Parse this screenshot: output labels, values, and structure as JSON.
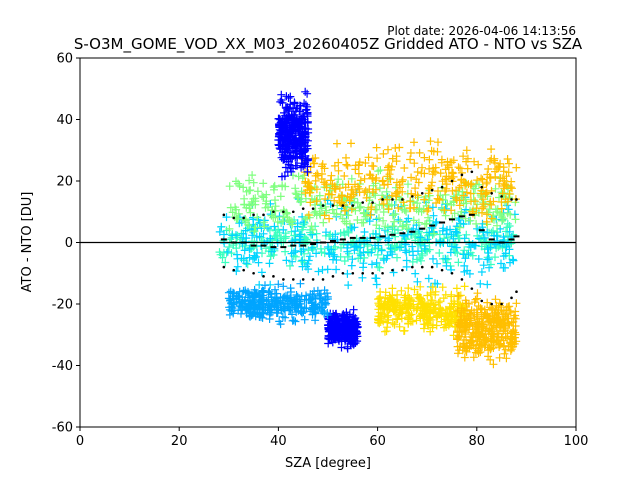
{
  "header": {
    "plot_date": "Plot date: 2026-04-06 14:13:56",
    "title": "S-O3M_GOME_VOD_XX_M03_20260405Z Gridded ATO - NTO vs SZA"
  },
  "chart_data": {
    "type": "scatter",
    "xlabel": "SZA [degree]",
    "ylabel": "ATO - NTO [DU]",
    "xlim": [
      0,
      100
    ],
    "ylim": [
      -60,
      60
    ],
    "xticks": [
      0,
      20,
      40,
      60,
      80,
      100
    ],
    "yticks": [
      -60,
      -40,
      -20,
      0,
      20,
      40,
      60
    ],
    "grid": false,
    "marker": "+",
    "reference_line_y": 0,
    "point_colors": [
      "#0000ff",
      "#00a5ff",
      "#00d5ff",
      "#3affbf",
      "#7fff7f",
      "#bfff3a",
      "#ffe000",
      "#ffbf00"
    ],
    "mean_bins": {
      "x": [
        29,
        31,
        33,
        35,
        37,
        39,
        41,
        43,
        45,
        47,
        49,
        51,
        53,
        55,
        57,
        59,
        61,
        63,
        65,
        67,
        69,
        71,
        73,
        75,
        77,
        79,
        81,
        83,
        85,
        87,
        88
      ],
      "mean": [
        1,
        0,
        0,
        -1,
        -1,
        -1.5,
        -1.5,
        -1,
        -1,
        -0.5,
        0,
        0.5,
        1,
        1.5,
        1.5,
        1.5,
        2,
        2.5,
        3,
        3.5,
        4.5,
        5.5,
        6.5,
        7.5,
        8.5,
        9,
        4,
        1,
        0,
        1,
        2
      ],
      "upper": [
        9,
        8,
        8,
        9,
        9,
        10,
        10,
        10,
        11,
        11,
        12,
        12,
        12,
        12,
        13,
        13,
        14,
        14,
        14,
        15,
        16,
        17,
        18,
        20,
        22,
        23,
        18,
        16,
        15,
        14,
        14
      ],
      "lower": [
        -8,
        -9,
        -9,
        -10,
        -11,
        -11,
        -12,
        -12,
        -12,
        -12,
        -12,
        -11,
        -10,
        -10,
        -10,
        -10,
        -10,
        -9,
        -9,
        -8,
        -8,
        -8,
        -9,
        -10,
        -12,
        -15,
        -19,
        -20,
        -20,
        -18,
        -16
      ]
    },
    "scatter_clusters": [
      {
        "x_range": [
          28,
          88
        ],
        "y_center": 0,
        "y_spread": 10,
        "color": "#3affbf"
      },
      {
        "x_range": [
          28,
          88
        ],
        "y_center": 0,
        "y_spread": 20,
        "color": "#00d5ff"
      },
      {
        "x_range": [
          30,
          88
        ],
        "y_center": 12,
        "y_spread": 14,
        "color": "#7fff7f"
      },
      {
        "x_range": [
          45,
          88
        ],
        "y_center": 20,
        "y_spread": 18,
        "color": "#ffbf00"
      },
      {
        "x_range": [
          60,
          78
        ],
        "y_center": -22,
        "y_spread": 10,
        "color": "#ffe000"
      },
      {
        "x_range": [
          76,
          88
        ],
        "y_center": -28,
        "y_spread": 14,
        "color": "#ffbf00"
      },
      {
        "x_range": [
          40,
          46
        ],
        "y_center": 35,
        "y_spread": 18,
        "color": "#0000ff"
      },
      {
        "x_range": [
          50,
          56
        ],
        "y_center": -28,
        "y_spread": 8,
        "color": "#0000ff"
      },
      {
        "x_range": [
          30,
          50
        ],
        "y_center": -20,
        "y_spread": 8,
        "color": "#00a5ff"
      }
    ]
  }
}
